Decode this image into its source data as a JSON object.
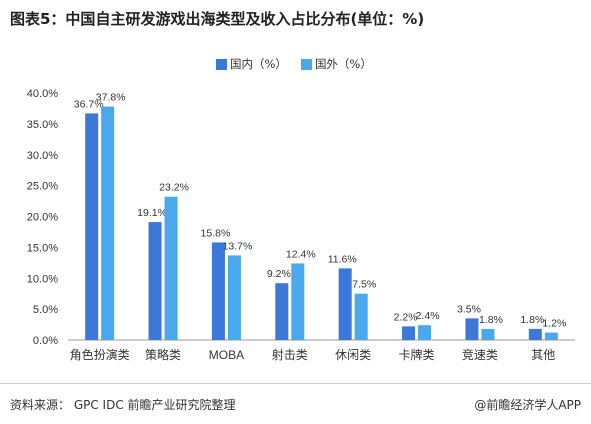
{
  "title": "图表5：中国自主研发游戏出海类型及收入占比分布(单位：%)",
  "source": "资料来源：  GPC  IDC  前瞻产业研究院整理",
  "brand": "@前瞻经济学人APP",
  "colors": {
    "domestic": "#3b78d8",
    "overseas": "#4aa8ec",
    "axis": "#999999"
  },
  "chart_data": {
    "type": "bar",
    "categories": [
      "角色扮演类",
      "策略类",
      "MOBA",
      "射击类",
      "休闲类",
      "卡牌类",
      "竞速类",
      "其他"
    ],
    "series": [
      {
        "name": "国内（%）",
        "values": [
          36.7,
          19.1,
          15.8,
          9.2,
          11.6,
          2.2,
          3.5,
          1.8
        ]
      },
      {
        "name": "国外（%）",
        "values": [
          37.8,
          23.2,
          13.7,
          12.4,
          7.5,
          2.4,
          1.8,
          1.2
        ]
      }
    ],
    "y_ticks": [
      "0.0%",
      "5.0%",
      "10.0%",
      "15.0%",
      "20.0%",
      "25.0%",
      "30.0%",
      "35.0%",
      "40.0%"
    ],
    "data_labels": [
      [
        "36.7%",
        "19.1%",
        "15.8%",
        "9.2%",
        "11.6%",
        "2.2%",
        "3.5%",
        "1.8%"
      ],
      [
        "37.8%",
        "23.2%",
        "13.7%",
        "12.4%",
        "7.5%",
        "2.4%",
        "1.8%",
        "1.2%"
      ]
    ],
    "ylim": [
      0,
      40
    ],
    "grid": false,
    "legend": "top-center"
  }
}
